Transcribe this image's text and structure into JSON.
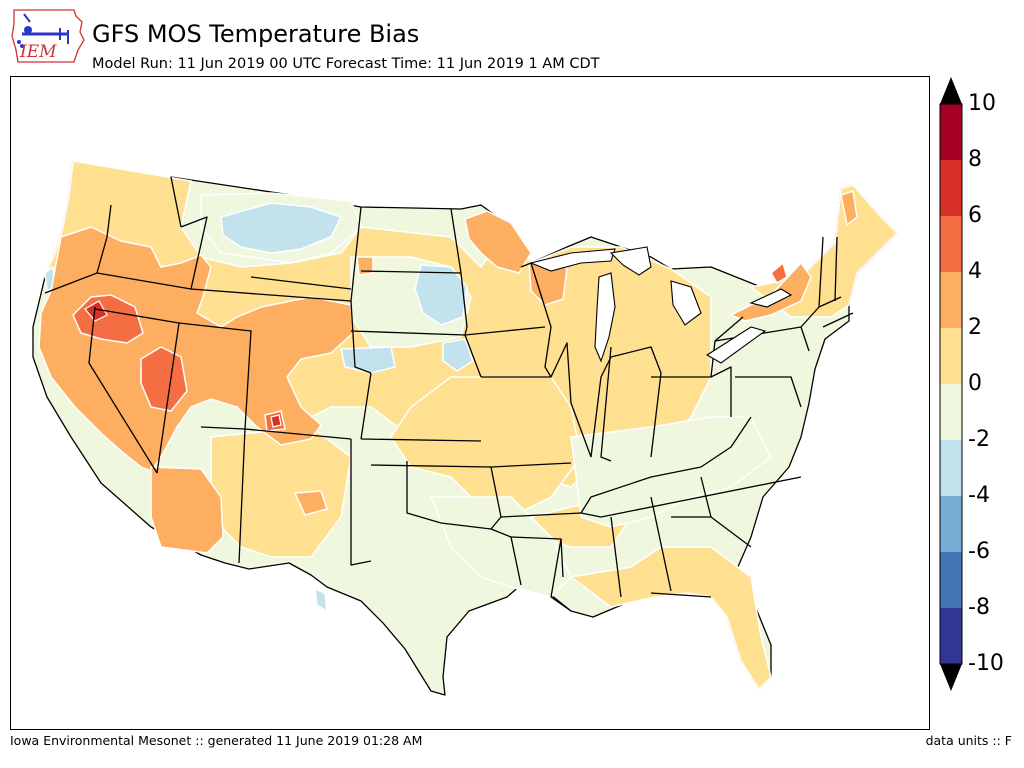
{
  "logo": {
    "text": "IEM"
  },
  "header": {
    "title": "GFS MOS Temperature Bias",
    "subtitle": "Model Run: 11 Jun 2019 00 UTC Forecast Time: 11 Jun 2019 1 AM CDT"
  },
  "colorbar": {
    "ticks": [
      "10",
      "8",
      "6",
      "4",
      "2",
      "0",
      "-2",
      "-4",
      "-6",
      "-8",
      "-10"
    ],
    "levels": [
      {
        "range": "8 to 10",
        "color": "#a50026"
      },
      {
        "range": "6 to 8",
        "color": "#d73027"
      },
      {
        "range": "4 to 6",
        "color": "#f46d43"
      },
      {
        "range": "2 to 4",
        "color": "#fdae61"
      },
      {
        "range": "0 to 2",
        "color": "#fee090"
      },
      {
        "range": "-2 to 0",
        "color": "#eff7df"
      },
      {
        "range": "-4 to -2",
        "color": "#c2e3ee"
      },
      {
        "range": "-6 to -4",
        "color": "#74add1"
      },
      {
        "range": "-8 to -6",
        "color": "#4575b4"
      },
      {
        "range": "-10 to -8",
        "color": "#313695"
      }
    ],
    "over_color": "#000000",
    "under_color": "#000000"
  },
  "footer": {
    "left": "Iowa Environmental Mesonet :: generated 11 June 2019 01:28 AM",
    "right": "data units :: F"
  }
}
